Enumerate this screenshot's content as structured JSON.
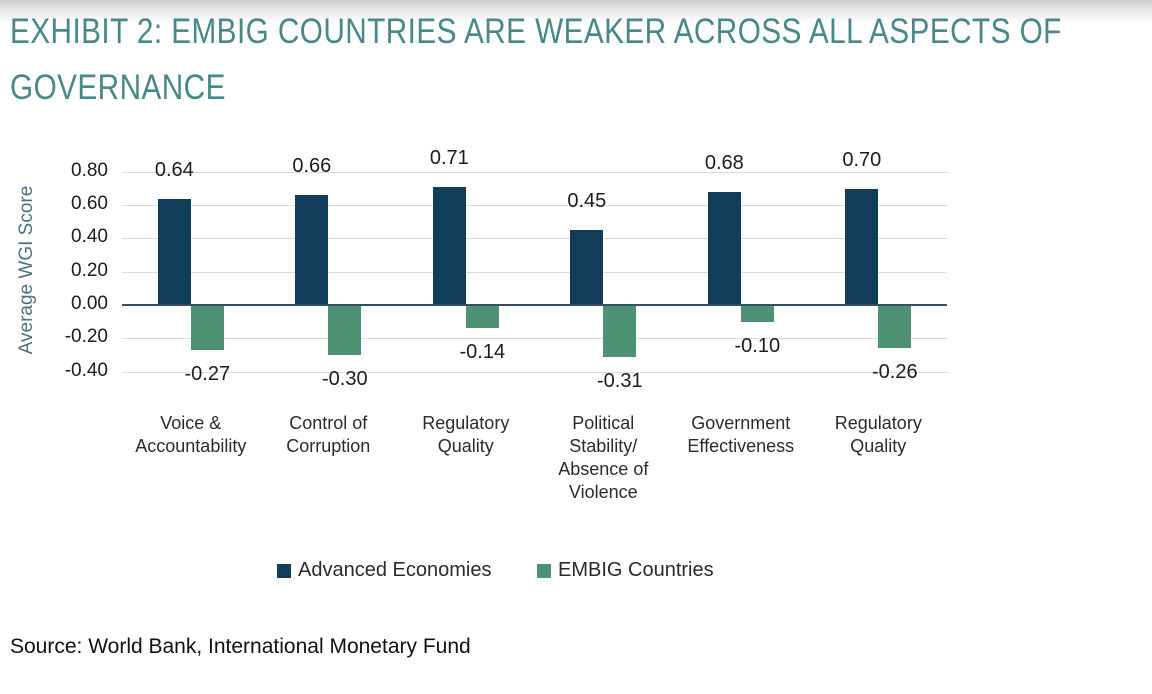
{
  "header": {
    "title_line1": "EXHIBIT 2: EMBIG COUNTRIES ARE WEAKER ACROSS ALL ASPECTS OF",
    "title_line2": "GOVERNANCE"
  },
  "chart_data": {
    "type": "bar",
    "title": "EXHIBIT 2: EMBIG COUNTRIES ARE WEAKER ACROSS ALL ASPECTS OF GOVERNANCE",
    "ylabel": "Average WGI Score",
    "ylim": [
      -0.4,
      0.8
    ],
    "yticks": [
      "0.80",
      "0.60",
      "0.40",
      "0.20",
      "0.00",
      "-0.20",
      "-0.40"
    ],
    "grid": true,
    "legend_position": "bottom",
    "categories": [
      "Voice & Accountability",
      "Control of Corruption",
      "Regulatory Quality",
      "Political Stability/ Absence of Violence",
      "Government Effectiveness",
      "Regulatory Quality"
    ],
    "series": [
      {
        "name": "Advanced Economies",
        "color": "#113d5b",
        "values": [
          0.64,
          0.66,
          0.71,
          0.45,
          0.68,
          0.7
        ],
        "labels": [
          "0.64",
          "0.66",
          "0.71",
          "0.45",
          "0.68",
          "0.70"
        ]
      },
      {
        "name": "EMBIG Countries",
        "color": "#4f9175",
        "values": [
          -0.27,
          -0.3,
          -0.14,
          -0.31,
          -0.1,
          -0.26
        ],
        "labels": [
          "-0.27",
          "-0.30",
          "-0.14",
          "-0.31",
          "-0.10",
          "-0.26"
        ]
      }
    ]
  },
  "footer": {
    "source": "Source: World Bank, International Monetary Fund"
  },
  "colors": {
    "title_teal": "#47898b",
    "axis_title": "#4e7083",
    "text": "#1c1c1c",
    "category_text": "#2b2b2b",
    "grid": "#d9dcdf",
    "zero_line": "#36505e",
    "advanced_navy": "#113d5b",
    "embig_green": "#4f9175"
  }
}
